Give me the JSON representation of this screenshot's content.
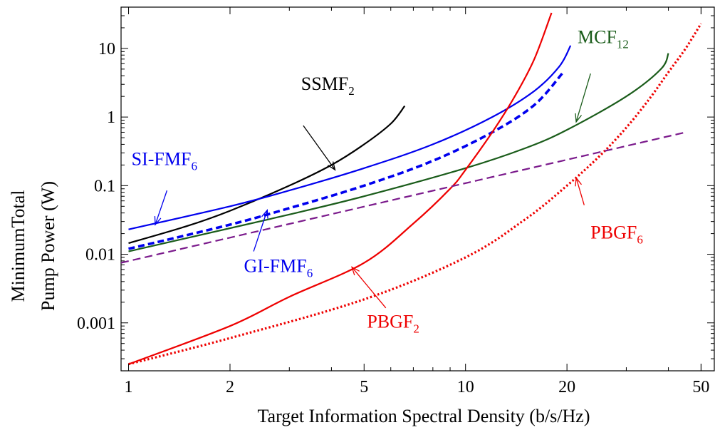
{
  "chart_data": {
    "type": "line",
    "xlabel": "Target Information Spectral Density (b/s/Hz)",
    "ylabel_line1": "MinimumTotal",
    "ylabel_line2": "Pump Power (W)",
    "x_scale": "log",
    "y_scale": "log",
    "xlim": [
      0.95,
      55
    ],
    "ylim": [
      0.0002,
      40
    ],
    "x_ticks": [
      {
        "value": 1,
        "label": "1"
      },
      {
        "value": 2,
        "label": "2"
      },
      {
        "value": 5,
        "label": "5"
      },
      {
        "value": 10,
        "label": "10"
      },
      {
        "value": 20,
        "label": "20"
      },
      {
        "value": 50,
        "label": "50"
      }
    ],
    "y_ticks": [
      {
        "value": 0.001,
        "label": "0.001"
      },
      {
        "value": 0.01,
        "label": "0.01"
      },
      {
        "value": 0.1,
        "label": "0.1"
      },
      {
        "value": 1,
        "label": "1"
      },
      {
        "value": 10,
        "label": "10"
      }
    ],
    "grid": false,
    "series": [
      {
        "name": "SSMF2",
        "color": "#000000",
        "style": "solid",
        "x": [
          1,
          1.5,
          2,
          3,
          4,
          5,
          6,
          6.6
        ],
        "y": [
          0.0145,
          0.026,
          0.043,
          0.1,
          0.2,
          0.4,
          0.8,
          1.45
        ]
      },
      {
        "name": "SI-FMF6",
        "color": "#0000ee",
        "style": "solid",
        "x": [
          1,
          2,
          3,
          5,
          8,
          12,
          16,
          19,
          20.5
        ],
        "y": [
          0.023,
          0.05,
          0.085,
          0.18,
          0.4,
          1.0,
          2.4,
          5.5,
          11
        ]
      },
      {
        "name": "GI-FMF6",
        "color": "#0000ee",
        "style": "dashed",
        "x": [
          1,
          2,
          3,
          5,
          8,
          12,
          16,
          19.5
        ],
        "y": [
          0.012,
          0.027,
          0.047,
          0.1,
          0.23,
          0.6,
          1.5,
          4.5
        ]
      },
      {
        "name": "MCF12",
        "color": "#1a5c1a",
        "style": "solid",
        "x": [
          1,
          2,
          3,
          5,
          10,
          15,
          20,
          30,
          38,
          40
        ],
        "y": [
          0.011,
          0.024,
          0.038,
          0.07,
          0.18,
          0.35,
          0.65,
          2.0,
          5.0,
          8.5
        ]
      },
      {
        "name": "PBGF2",
        "color": "#ee0000",
        "style": "solid",
        "x": [
          1,
          2,
          3,
          5,
          7,
          9,
          10,
          12,
          14,
          16,
          18
        ],
        "y": [
          0.00025,
          0.0009,
          0.0024,
          0.0075,
          0.028,
          0.09,
          0.17,
          0.6,
          2.0,
          7.0,
          33
        ]
      },
      {
        "name": "PBGF6",
        "color": "#ee0000",
        "style": "dotted",
        "x": [
          1,
          2,
          5,
          10,
          15,
          20,
          25,
          30,
          35,
          40,
          45,
          50
        ],
        "y": [
          0.00025,
          0.0006,
          0.0022,
          0.009,
          0.032,
          0.1,
          0.27,
          0.7,
          1.8,
          4.5,
          10,
          23
        ]
      },
      {
        "name": "",
        "color": "#7b1a8c",
        "style": "longdash",
        "x": [
          0.95,
          45
        ],
        "y": [
          0.0075,
          0.6
        ]
      }
    ],
    "annotations": [
      {
        "base": "SSMF",
        "sub": "2",
        "color": "#000000",
        "text_x": 3.25,
        "text_y": 2.5,
        "arrow_from": [
          3.3,
          0.75
        ],
        "arrow_to": [
          4.1,
          0.17
        ]
      },
      {
        "base": "SI-FMF",
        "sub": "6",
        "color": "#0000ee",
        "text_x": 1.02,
        "text_y": 0.2,
        "arrow_from": [
          1.3,
          0.085
        ],
        "arrow_to": [
          1.2,
          0.027
        ]
      },
      {
        "base": "GI-FMF",
        "sub": "6",
        "color": "#0000ee",
        "text_x": 2.2,
        "text_y": 0.0055,
        "arrow_from": [
          2.35,
          0.011
        ],
        "arrow_to": [
          2.58,
          0.044
        ]
      },
      {
        "base": "MCF",
        "sub": "12",
        "color": "#1a5c1a",
        "text_x": 21.5,
        "text_y": 12,
        "arrow_from": [
          23.5,
          4.3
        ],
        "arrow_to": [
          21.3,
          0.85
        ]
      },
      {
        "base": "PBGF",
        "sub": "6",
        "color": "#ee0000",
        "text_x": 23.5,
        "text_y": 0.017,
        "arrow_from": [
          22.5,
          0.052
        ],
        "arrow_to": [
          21.3,
          0.13
        ]
      },
      {
        "base": "PBGF",
        "sub": "2",
        "color": "#ee0000",
        "text_x": 5.1,
        "text_y": 0.00085,
        "arrow_from": [
          5.8,
          0.00165
        ],
        "arrow_to": [
          4.6,
          0.0065
        ]
      }
    ]
  }
}
